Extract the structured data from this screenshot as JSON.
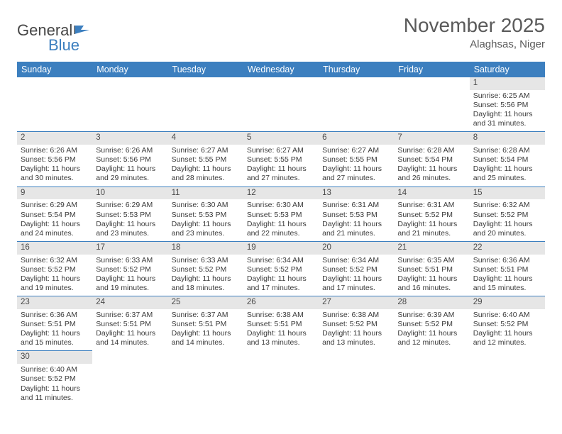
{
  "logo": {
    "general": "General",
    "blue": "Blue"
  },
  "title": {
    "month": "November 2025",
    "location": "Alaghsas, Niger"
  },
  "colors": {
    "headerBg": "#3c7fbf",
    "grey": "#e6e6e6"
  },
  "weekdays": [
    "Sunday",
    "Monday",
    "Tuesday",
    "Wednesday",
    "Thursday",
    "Friday",
    "Saturday"
  ],
  "startOffset": 6,
  "days": [
    {
      "n": 1,
      "sr": "Sunrise: 6:25 AM",
      "ss": "Sunset: 5:56 PM",
      "dl": "Daylight: 11 hours and 31 minutes."
    },
    {
      "n": 2,
      "sr": "Sunrise: 6:26 AM",
      "ss": "Sunset: 5:56 PM",
      "dl": "Daylight: 11 hours and 30 minutes."
    },
    {
      "n": 3,
      "sr": "Sunrise: 6:26 AM",
      "ss": "Sunset: 5:56 PM",
      "dl": "Daylight: 11 hours and 29 minutes."
    },
    {
      "n": 4,
      "sr": "Sunrise: 6:27 AM",
      "ss": "Sunset: 5:55 PM",
      "dl": "Daylight: 11 hours and 28 minutes."
    },
    {
      "n": 5,
      "sr": "Sunrise: 6:27 AM",
      "ss": "Sunset: 5:55 PM",
      "dl": "Daylight: 11 hours and 27 minutes."
    },
    {
      "n": 6,
      "sr": "Sunrise: 6:27 AM",
      "ss": "Sunset: 5:55 PM",
      "dl": "Daylight: 11 hours and 27 minutes."
    },
    {
      "n": 7,
      "sr": "Sunrise: 6:28 AM",
      "ss": "Sunset: 5:54 PM",
      "dl": "Daylight: 11 hours and 26 minutes."
    },
    {
      "n": 8,
      "sr": "Sunrise: 6:28 AM",
      "ss": "Sunset: 5:54 PM",
      "dl": "Daylight: 11 hours and 25 minutes."
    },
    {
      "n": 9,
      "sr": "Sunrise: 6:29 AM",
      "ss": "Sunset: 5:54 PM",
      "dl": "Daylight: 11 hours and 24 minutes."
    },
    {
      "n": 10,
      "sr": "Sunrise: 6:29 AM",
      "ss": "Sunset: 5:53 PM",
      "dl": "Daylight: 11 hours and 23 minutes."
    },
    {
      "n": 11,
      "sr": "Sunrise: 6:30 AM",
      "ss": "Sunset: 5:53 PM",
      "dl": "Daylight: 11 hours and 23 minutes."
    },
    {
      "n": 12,
      "sr": "Sunrise: 6:30 AM",
      "ss": "Sunset: 5:53 PM",
      "dl": "Daylight: 11 hours and 22 minutes."
    },
    {
      "n": 13,
      "sr": "Sunrise: 6:31 AM",
      "ss": "Sunset: 5:53 PM",
      "dl": "Daylight: 11 hours and 21 minutes."
    },
    {
      "n": 14,
      "sr": "Sunrise: 6:31 AM",
      "ss": "Sunset: 5:52 PM",
      "dl": "Daylight: 11 hours and 21 minutes."
    },
    {
      "n": 15,
      "sr": "Sunrise: 6:32 AM",
      "ss": "Sunset: 5:52 PM",
      "dl": "Daylight: 11 hours and 20 minutes."
    },
    {
      "n": 16,
      "sr": "Sunrise: 6:32 AM",
      "ss": "Sunset: 5:52 PM",
      "dl": "Daylight: 11 hours and 19 minutes."
    },
    {
      "n": 17,
      "sr": "Sunrise: 6:33 AM",
      "ss": "Sunset: 5:52 PM",
      "dl": "Daylight: 11 hours and 19 minutes."
    },
    {
      "n": 18,
      "sr": "Sunrise: 6:33 AM",
      "ss": "Sunset: 5:52 PM",
      "dl": "Daylight: 11 hours and 18 minutes."
    },
    {
      "n": 19,
      "sr": "Sunrise: 6:34 AM",
      "ss": "Sunset: 5:52 PM",
      "dl": "Daylight: 11 hours and 17 minutes."
    },
    {
      "n": 20,
      "sr": "Sunrise: 6:34 AM",
      "ss": "Sunset: 5:52 PM",
      "dl": "Daylight: 11 hours and 17 minutes."
    },
    {
      "n": 21,
      "sr": "Sunrise: 6:35 AM",
      "ss": "Sunset: 5:51 PM",
      "dl": "Daylight: 11 hours and 16 minutes."
    },
    {
      "n": 22,
      "sr": "Sunrise: 6:36 AM",
      "ss": "Sunset: 5:51 PM",
      "dl": "Daylight: 11 hours and 15 minutes."
    },
    {
      "n": 23,
      "sr": "Sunrise: 6:36 AM",
      "ss": "Sunset: 5:51 PM",
      "dl": "Daylight: 11 hours and 15 minutes."
    },
    {
      "n": 24,
      "sr": "Sunrise: 6:37 AM",
      "ss": "Sunset: 5:51 PM",
      "dl": "Daylight: 11 hours and 14 minutes."
    },
    {
      "n": 25,
      "sr": "Sunrise: 6:37 AM",
      "ss": "Sunset: 5:51 PM",
      "dl": "Daylight: 11 hours and 14 minutes."
    },
    {
      "n": 26,
      "sr": "Sunrise: 6:38 AM",
      "ss": "Sunset: 5:51 PM",
      "dl": "Daylight: 11 hours and 13 minutes."
    },
    {
      "n": 27,
      "sr": "Sunrise: 6:38 AM",
      "ss": "Sunset: 5:52 PM",
      "dl": "Daylight: 11 hours and 13 minutes."
    },
    {
      "n": 28,
      "sr": "Sunrise: 6:39 AM",
      "ss": "Sunset: 5:52 PM",
      "dl": "Daylight: 11 hours and 12 minutes."
    },
    {
      "n": 29,
      "sr": "Sunrise: 6:40 AM",
      "ss": "Sunset: 5:52 PM",
      "dl": "Daylight: 11 hours and 12 minutes."
    },
    {
      "n": 30,
      "sr": "Sunrise: 6:40 AM",
      "ss": "Sunset: 5:52 PM",
      "dl": "Daylight: 11 hours and 11 minutes."
    }
  ]
}
